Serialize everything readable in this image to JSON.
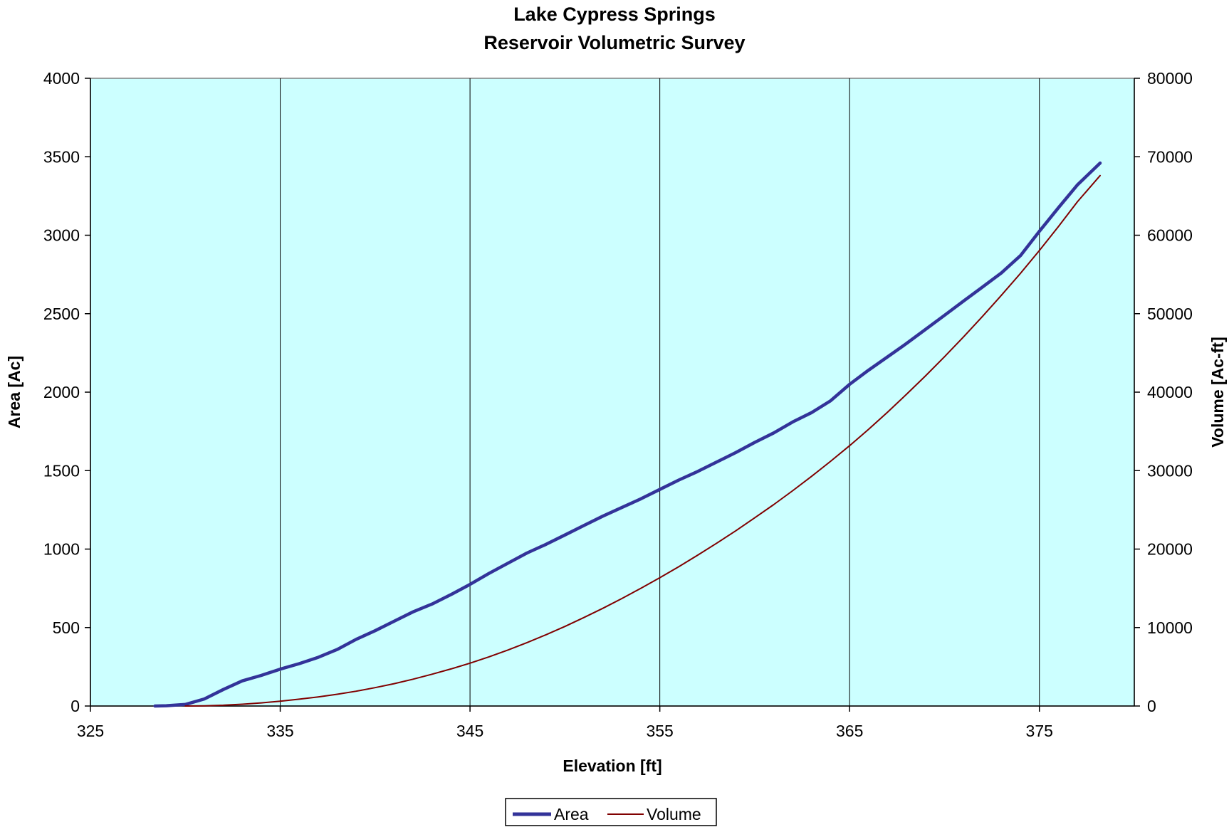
{
  "chart_data": {
    "type": "line",
    "title": "Lake Cypress Springs",
    "subtitle": "Reservoir Volumetric Survey",
    "xlabel": "Elevation [ft]",
    "ylabel": "Area [Ac]",
    "y2label": "Volume [Ac-ft]",
    "xlim": [
      325,
      380
    ],
    "ylim": [
      0,
      4000
    ],
    "y2lim": [
      0,
      80000
    ],
    "xticks": [
      "325",
      "335",
      "345",
      "355",
      "365",
      "375"
    ],
    "yticks": [
      "0",
      "500",
      "1000",
      "1500",
      "2000",
      "2500",
      "3000",
      "3500",
      "4000"
    ],
    "y2ticks": [
      "0",
      "10000",
      "20000",
      "30000",
      "40000",
      "50000",
      "60000",
      "70000",
      "80000"
    ],
    "grid": "vertical",
    "legend": "bottom-center",
    "plot_background": "#ccffff",
    "series": [
      {
        "name": "Area",
        "axis": "left",
        "color": "#333399",
        "x": [
          328.4,
          329,
          330,
          331,
          332,
          333,
          334,
          335,
          336,
          337,
          338,
          339,
          340,
          341,
          342,
          343,
          344,
          345,
          346,
          347,
          348,
          349,
          350,
          351,
          352,
          353,
          354,
          355,
          356,
          357,
          358,
          359,
          360,
          361,
          362,
          363,
          364,
          365,
          366,
          367,
          368,
          369,
          370,
          371,
          372,
          373,
          374,
          375,
          376,
          377,
          378.2
        ],
        "values": [
          0,
          2,
          10,
          45,
          105,
          160,
          195,
          235,
          270,
          310,
          360,
          425,
          480,
          540,
          600,
          650,
          710,
          775,
          845,
          910,
          975,
          1030,
          1090,
          1150,
          1210,
          1265,
          1320,
          1380,
          1440,
          1495,
          1555,
          1615,
          1680,
          1740,
          1810,
          1870,
          1945,
          2050,
          2140,
          2225,
          2310,
          2400,
          2490,
          2580,
          2670,
          2760,
          2870,
          3025,
          3175,
          3320,
          3460
        ]
      },
      {
        "name": "Volume",
        "axis": "right",
        "color": "#800000",
        "x": [
          330,
          331,
          332,
          333,
          334,
          335,
          336,
          337,
          338,
          339,
          340,
          341,
          342,
          343,
          344,
          345,
          346,
          347,
          348,
          349,
          350,
          351,
          352,
          353,
          354,
          355,
          356,
          357,
          358,
          359,
          360,
          361,
          362,
          363,
          364,
          365,
          366,
          367,
          368,
          369,
          370,
          371,
          372,
          373,
          374,
          375,
          376,
          377,
          378.2
        ],
        "values": [
          0,
          30,
          100,
          230,
          400,
          620,
          870,
          1160,
          1500,
          1890,
          2340,
          2850,
          3420,
          4050,
          4730,
          5460,
          6270,
          7140,
          8080,
          9080,
          10140,
          11270,
          12450,
          13700,
          15000,
          16350,
          17760,
          19230,
          20750,
          22330,
          23980,
          25670,
          27440,
          29280,
          31190,
          33180,
          35260,
          37450,
          39730,
          42080,
          44520,
          47040,
          49650,
          52350,
          55140,
          58050,
          61100,
          64250,
          67600
        ]
      }
    ]
  }
}
